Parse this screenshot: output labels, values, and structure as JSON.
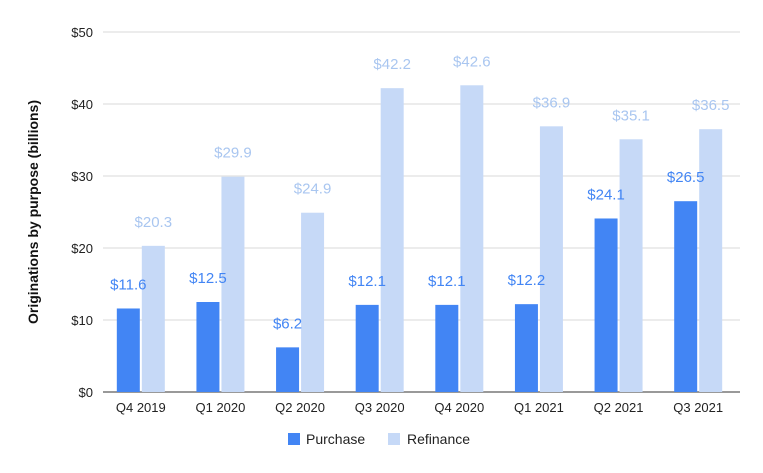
{
  "chart_data": {
    "type": "bar",
    "title": "",
    "xlabel": "",
    "ylabel": "Originations by purpose (billions)",
    "ylim": [
      0,
      50
    ],
    "y_ticks": [
      0,
      10,
      20,
      30,
      40,
      50
    ],
    "y_tick_labels": [
      "$0",
      "$10",
      "$20",
      "$30",
      "$40",
      "$50"
    ],
    "grid": true,
    "legend_position": "bottom",
    "categories": [
      "Q4 2019",
      "Q1 2020",
      "Q2 2020",
      "Q3 2020",
      "Q4 2020",
      "Q1 2021",
      "Q2 2021",
      "Q3 2021"
    ],
    "series": [
      {
        "name": "Purchase",
        "color": "#4285f4",
        "values": [
          11.6,
          12.5,
          6.2,
          12.1,
          12.1,
          12.2,
          24.1,
          26.5
        ],
        "value_labels": [
          "$11.6",
          "$12.5",
          "$6.2",
          "$12.1",
          "$12.1",
          "$12.2",
          "$24.1",
          "$26.5"
        ]
      },
      {
        "name": "Refinance",
        "color": "#c6d9f7",
        "label_color": "#a9c6f0",
        "values": [
          20.3,
          29.9,
          24.9,
          42.2,
          42.6,
          36.9,
          35.1,
          36.5
        ],
        "value_labels": [
          "$20.3",
          "$29.9",
          "$24.9",
          "$42.2",
          "$42.6",
          "$36.9",
          "$35.1",
          "$36.5"
        ]
      }
    ]
  }
}
